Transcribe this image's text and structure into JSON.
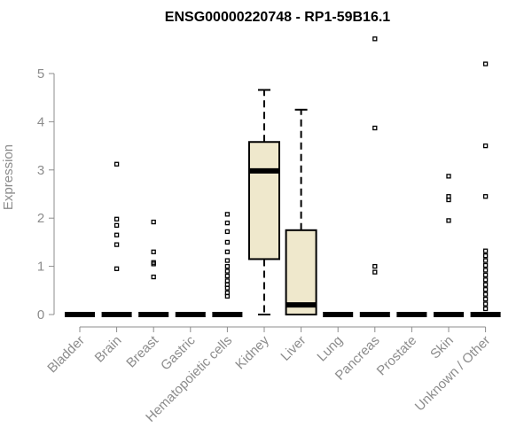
{
  "chart_data": {
    "type": "boxplot",
    "title": "ENSG00000220748 - RP1-59B16.1",
    "ylabel": "Expression",
    "xlabel": "",
    "ylim": [
      0,
      5.8
    ],
    "yticks": [
      0,
      1,
      2,
      3,
      4,
      5
    ],
    "grid": false,
    "colors": {
      "box_fill": "#efe8cc",
      "axis": "#8c8c8c",
      "title": "#000000"
    },
    "categories": [
      "Bladder",
      "Brain",
      "Breast",
      "Gastric",
      "Hematopoietic cells",
      "Kidney",
      "Liver",
      "Lung",
      "Pancreas",
      "Prostate",
      "Skin",
      "Unknown / Other"
    ],
    "boxes": [
      {
        "category": "Bladder",
        "min": 0,
        "q1": 0,
        "median": 0,
        "q3": 0,
        "max": 0,
        "outliers": []
      },
      {
        "category": "Brain",
        "min": 0,
        "q1": 0,
        "median": 0,
        "q3": 0,
        "max": 0,
        "outliers": [
          0.95,
          1.45,
          1.65,
          1.85,
          1.98,
          3.12
        ]
      },
      {
        "category": "Breast",
        "min": 0,
        "q1": 0,
        "median": 0,
        "q3": 0,
        "max": 0,
        "outliers": [
          0.78,
          1.05,
          1.08,
          1.3,
          1.92
        ]
      },
      {
        "category": "Gastric",
        "min": 0,
        "q1": 0,
        "median": 0,
        "q3": 0,
        "max": 0,
        "outliers": []
      },
      {
        "category": "Hematopoietic cells",
        "min": 0,
        "q1": 0,
        "median": 0,
        "q3": 0,
        "max": 0,
        "outliers": [
          0.38,
          0.45,
          0.55,
          0.62,
          0.7,
          0.8,
          0.9,
          1.0,
          1.12,
          1.3,
          1.5,
          1.72,
          1.9,
          2.08
        ]
      },
      {
        "category": "Kidney",
        "min": 0,
        "q1": 1.15,
        "median": 2.98,
        "q3": 3.58,
        "max": 4.66,
        "outliers": []
      },
      {
        "category": "Liver",
        "min": 0,
        "q1": 0,
        "median": 0.2,
        "q3": 1.75,
        "max": 4.25,
        "outliers": []
      },
      {
        "category": "Lung",
        "min": 0,
        "q1": 0,
        "median": 0,
        "q3": 0,
        "max": 0,
        "outliers": []
      },
      {
        "category": "Pancreas",
        "min": 0,
        "q1": 0,
        "median": 0,
        "q3": 0,
        "max": 0,
        "outliers": [
          0.88,
          1.0,
          3.87,
          5.72
        ]
      },
      {
        "category": "Prostate",
        "min": 0,
        "q1": 0,
        "median": 0,
        "q3": 0,
        "max": 0,
        "outliers": []
      },
      {
        "category": "Skin",
        "min": 0,
        "q1": 0,
        "median": 0,
        "q3": 0,
        "max": 0,
        "outliers": [
          1.95,
          2.38,
          2.45,
          2.87
        ]
      },
      {
        "category": "Unknown / Other",
        "min": 0,
        "q1": 0,
        "median": 0,
        "q3": 0,
        "max": 0,
        "outliers": [
          0.12,
          0.22,
          0.32,
          0.42,
          0.52,
          0.62,
          0.72,
          0.82,
          0.92,
          1.02,
          1.12,
          1.22,
          1.32,
          2.45,
          3.5,
          5.2
        ]
      }
    ]
  }
}
